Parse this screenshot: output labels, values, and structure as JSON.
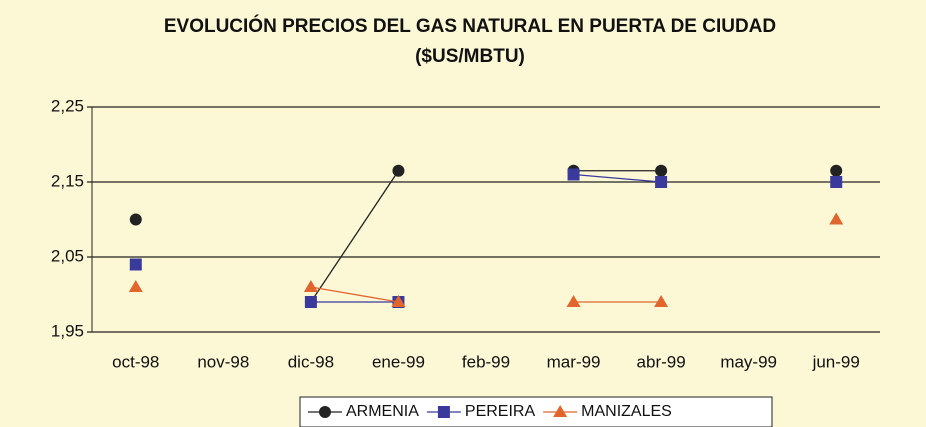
{
  "chart_data": {
    "type": "line",
    "title": "EVOLUCIÓN PRECIOS DEL GAS NATURAL EN PUERTA DE CIUDAD ($US/MBTU)",
    "categories": [
      "oct-98",
      "nov-98",
      "dic-98",
      "ene-99",
      "feb-99",
      "mar-99",
      "abr-99",
      "may-99",
      "jun-99"
    ],
    "series": [
      {
        "name": "ARMENIA",
        "color": "#222222",
        "marker": "circle",
        "values": [
          2.1,
          null,
          1.99,
          2.165,
          null,
          2.165,
          2.165,
          null,
          2.165
        ]
      },
      {
        "name": "PEREIRA",
        "color": "#3a3a9c",
        "marker": "square",
        "values": [
          2.04,
          null,
          1.99,
          1.99,
          null,
          2.16,
          2.15,
          null,
          2.15
        ]
      },
      {
        "name": "MANIZALES",
        "color": "#e0662e",
        "marker": "triangle",
        "values": [
          2.01,
          null,
          2.01,
          1.99,
          null,
          1.99,
          1.99,
          null,
          2.1
        ]
      }
    ],
    "ylim": [
      1.95,
      2.25
    ],
    "yticks": [
      {
        "value": 1.95,
        "label": "1,95"
      },
      {
        "value": 2.05,
        "label": "2,05"
      },
      {
        "value": 2.15,
        "label": "2,15"
      },
      {
        "value": 2.25,
        "label": "2,25"
      }
    ],
    "grid": true,
    "legend": "bottom"
  }
}
